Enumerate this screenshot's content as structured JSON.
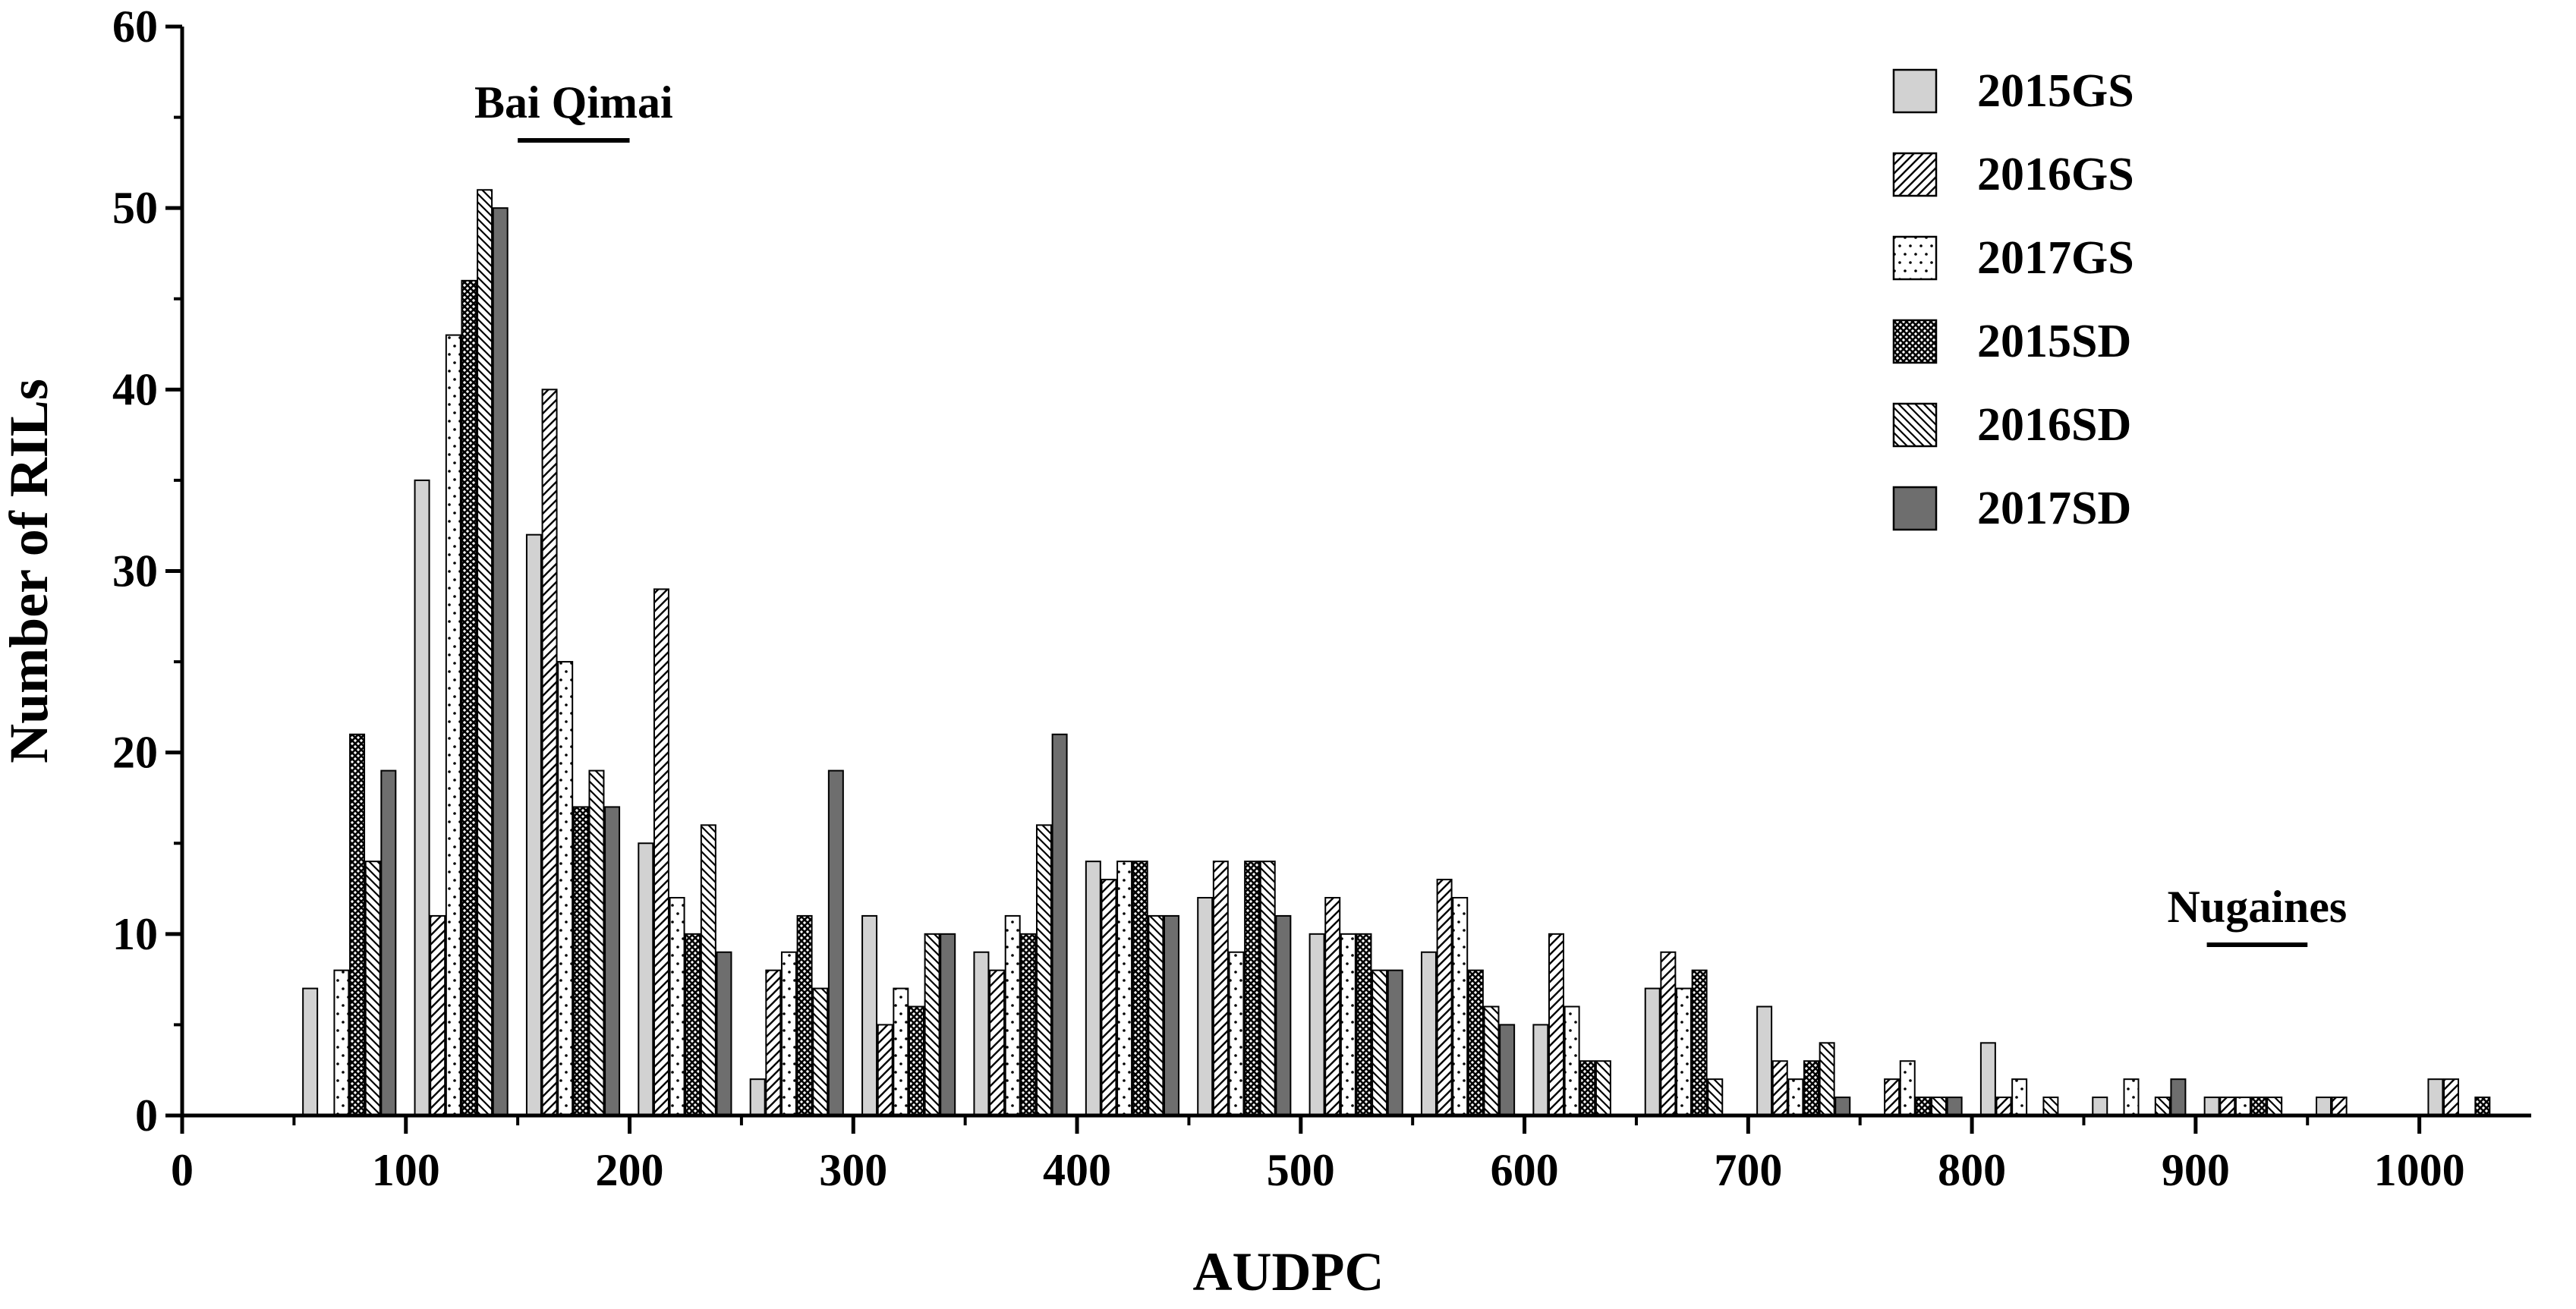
{
  "chart_data": {
    "type": "bar",
    "title": "",
    "xlabel": "AUDPC",
    "ylabel": "Number of RILs",
    "xlim": [
      0,
      1050
    ],
    "ylim": [
      0,
      60
    ],
    "x_ticks": [
      0,
      100,
      200,
      300,
      400,
      500,
      600,
      700,
      800,
      900,
      1000
    ],
    "y_ticks": [
      0,
      10,
      20,
      30,
      40,
      50,
      60
    ],
    "grid": false,
    "legend_position": "top-right",
    "bin_centers": [
      75,
      125,
      175,
      225,
      275,
      325,
      375,
      425,
      475,
      525,
      575,
      625,
      675,
      725,
      775,
      825,
      875,
      925,
      975,
      1025
    ],
    "series": [
      {
        "name": "2015GS",
        "pattern": "light-gray",
        "values": [
          7,
          35,
          32,
          15,
          2,
          11,
          9,
          14,
          12,
          10,
          9,
          5,
          7,
          6,
          0,
          4,
          1,
          1,
          1,
          2
        ]
      },
      {
        "name": "2016GS",
        "pattern": "forward-hatch",
        "values": [
          0,
          11,
          40,
          29,
          8,
          5,
          8,
          13,
          14,
          12,
          13,
          10,
          9,
          3,
          2,
          1,
          0,
          1,
          1,
          2
        ]
      },
      {
        "name": "2017GS",
        "pattern": "dotted",
        "values": [
          8,
          43,
          25,
          12,
          9,
          7,
          11,
          14,
          9,
          10,
          12,
          6,
          7,
          2,
          3,
          2,
          2,
          1,
          0,
          0
        ]
      },
      {
        "name": "2015SD",
        "pattern": "crosshatch",
        "values": [
          21,
          46,
          17,
          10,
          11,
          6,
          10,
          14,
          14,
          10,
          8,
          3,
          8,
          3,
          1,
          0,
          0,
          1,
          0,
          1
        ]
      },
      {
        "name": "2016SD",
        "pattern": "back-hatch",
        "values": [
          14,
          51,
          19,
          16,
          7,
          10,
          16,
          11,
          14,
          8,
          6,
          3,
          2,
          4,
          1,
          1,
          1,
          1,
          0,
          0
        ]
      },
      {
        "name": "2017SD",
        "pattern": "dark-gray",
        "values": [
          19,
          50,
          17,
          9,
          19,
          10,
          21,
          11,
          11,
          8,
          5,
          0,
          0,
          1,
          1,
          0,
          2,
          0,
          0,
          0
        ]
      }
    ],
    "annotations": [
      {
        "text": "Bai Qimai",
        "x_range": [
          150,
          200
        ]
      },
      {
        "text": "Nugaines",
        "x_range": [
          905,
          950
        ]
      }
    ]
  }
}
